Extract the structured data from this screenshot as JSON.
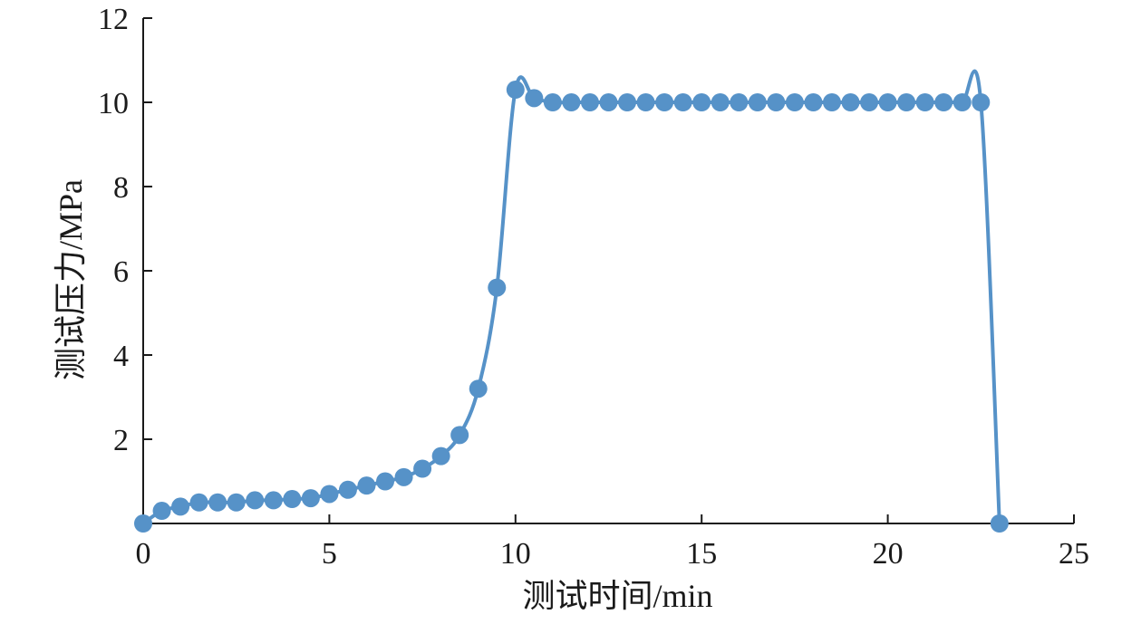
{
  "chart_data": {
    "type": "line",
    "title": "",
    "xlabel": "测试时间/min",
    "ylabel": "测试压力/MPa",
    "xlim": [
      0,
      25
    ],
    "ylim": [
      0,
      12
    ],
    "x_ticks": [
      "0",
      "5",
      "10",
      "15",
      "20",
      "25"
    ],
    "y_ticks": [
      "2",
      "4",
      "6",
      "8",
      "10",
      "12"
    ],
    "grid": false,
    "legend": "none",
    "color": "#5692c8",
    "series": [
      {
        "x": [
          0,
          0.5,
          1,
          1.5,
          2,
          2.5,
          3,
          3.5,
          4,
          4.5,
          5,
          5.5,
          6,
          6.5,
          7,
          7.5,
          8,
          8.5,
          9,
          9.5,
          10,
          10.5,
          11,
          11.5,
          12,
          12.5,
          13,
          13.5,
          14,
          14.5,
          15,
          15.5,
          16,
          16.5,
          17,
          17.5,
          18,
          18.5,
          19,
          19.5,
          20,
          20.5,
          21,
          21.5,
          22,
          22.5,
          23
        ],
        "values": [
          0,
          0.3,
          0.4,
          0.5,
          0.5,
          0.5,
          0.55,
          0.55,
          0.58,
          0.6,
          0.7,
          0.8,
          0.9,
          1.0,
          1.1,
          1.3,
          1.6,
          2.1,
          3.2,
          5.6,
          10.3,
          10.1,
          10,
          10,
          10,
          10,
          10,
          10,
          10,
          10,
          10,
          10,
          10,
          10,
          10,
          10,
          10,
          10,
          10,
          10,
          10,
          10,
          10,
          10,
          10,
          10,
          0
        ]
      }
    ]
  }
}
